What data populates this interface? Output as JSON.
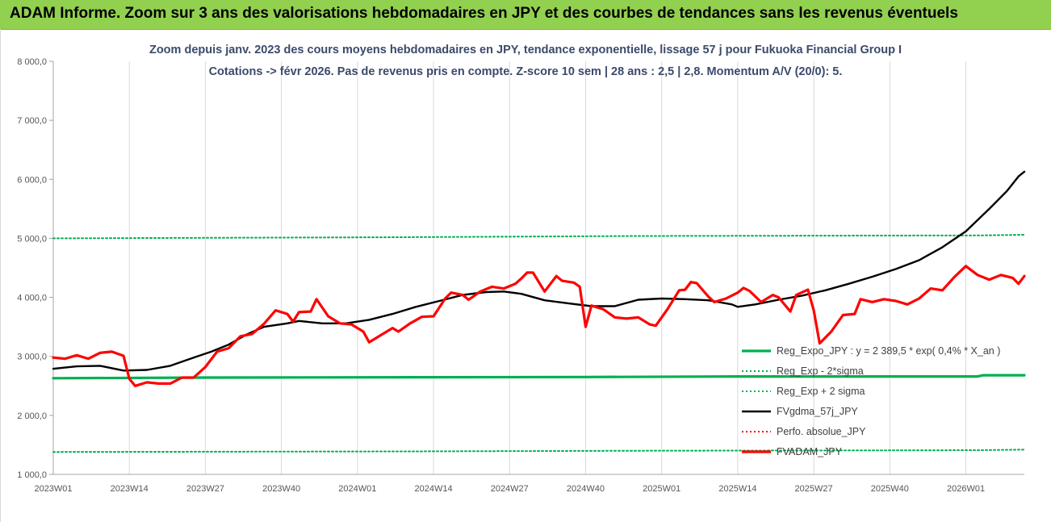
{
  "banner": {
    "title": "ADAM Informe. Zoom sur 3 ans des valorisations hebdomadaires en JPY et des courbes de tendances sans les revenus éventuels",
    "color": "#92d050"
  },
  "chart_data": {
    "type": "line",
    "title_lines": [
      "Zoom depuis janv. 2023 des cours moyens hebdomadaires en JPY, tendance exponentielle, lissage 57 j pour Fukuoka Financial Group I",
      "Cotations -> févr 2026.  Pas de revenus pris en compte. Z-score 10 sem | 28 ans : 2,5 | 2,8. Momentum A/V (20/0): 5."
    ],
    "x_tick_labels": [
      "2023W01",
      "2023W14",
      "2023W27",
      "2023W40",
      "2024W01",
      "2024W14",
      "2024W27",
      "2024W40",
      "2025W01",
      "2025W14",
      "2025W27",
      "2025W40",
      "2026W01"
    ],
    "x_tick_index": [
      0,
      13,
      26,
      39,
      52,
      65,
      78,
      91,
      104,
      117,
      130,
      143,
      156
    ],
    "y_tick_labels": [
      "1 000,0",
      "2 000,0",
      "3 000,0",
      "4 000,0",
      "5 000,0",
      "6 000,0",
      "7 000,0",
      "8 000,0"
    ],
    "ylim": [
      1000,
      8000
    ],
    "x_count": 166,
    "grid": "vertical",
    "legend_position": "bottom-right",
    "series": [
      {
        "name": "Reg_Expo_JPY : y = 2 389,5 * exp( 0,4% * X_an )",
        "color": "#00b050",
        "style": "solid-thick",
        "points": [
          [
            0,
            2630
          ],
          [
            26,
            2640
          ],
          [
            91,
            2650
          ],
          [
            117,
            2660
          ],
          [
            158,
            2660
          ],
          [
            159,
            2680
          ],
          [
            166,
            2680
          ]
        ]
      },
      {
        "name": "Reg_Exp - 2*sigma",
        "color": "#00b050",
        "style": "dotted",
        "points": [
          [
            0,
            1380
          ],
          [
            60,
            1390
          ],
          [
            100,
            1400
          ],
          [
            158,
            1410
          ],
          [
            166,
            1420
          ]
        ]
      },
      {
        "name": "Reg_Exp + 2 sigma",
        "color": "#00b050",
        "style": "dotted",
        "points": [
          [
            0,
            5000
          ],
          [
            60,
            5020
          ],
          [
            100,
            5040
          ],
          [
            158,
            5050
          ],
          [
            166,
            5060
          ]
        ]
      },
      {
        "name": "FVgdma_57j_JPY",
        "color": "#000000",
        "style": "solid",
        "points": [
          [
            0,
            2790
          ],
          [
            4,
            2830
          ],
          [
            8,
            2840
          ],
          [
            12,
            2760
          ],
          [
            16,
            2770
          ],
          [
            20,
            2840
          ],
          [
            24,
            2980
          ],
          [
            27,
            3080
          ],
          [
            30,
            3200
          ],
          [
            33,
            3370
          ],
          [
            36,
            3500
          ],
          [
            40,
            3560
          ],
          [
            42,
            3600
          ],
          [
            46,
            3560
          ],
          [
            50,
            3560
          ],
          [
            54,
            3620
          ],
          [
            58,
            3720
          ],
          [
            62,
            3840
          ],
          [
            66,
            3940
          ],
          [
            70,
            4040
          ],
          [
            74,
            4090
          ],
          [
            77,
            4100
          ],
          [
            80,
            4060
          ],
          [
            84,
            3950
          ],
          [
            88,
            3900
          ],
          [
            92,
            3850
          ],
          [
            96,
            3850
          ],
          [
            100,
            3960
          ],
          [
            104,
            3980
          ],
          [
            108,
            3970
          ],
          [
            112,
            3950
          ],
          [
            116,
            3880
          ],
          [
            117,
            3840
          ],
          [
            120,
            3880
          ],
          [
            124,
            3960
          ],
          [
            128,
            4030
          ],
          [
            132,
            4120
          ],
          [
            136,
            4230
          ],
          [
            140,
            4350
          ],
          [
            144,
            4480
          ],
          [
            148,
            4630
          ],
          [
            152,
            4850
          ],
          [
            156,
            5120
          ],
          [
            160,
            5500
          ],
          [
            163,
            5800
          ],
          [
            165,
            6050
          ],
          [
            166,
            6130
          ]
        ]
      },
      {
        "name": "Perfo. absolue_JPY",
        "color": "#ff0000",
        "style": "dotted",
        "points": []
      },
      {
        "name": "FVADAM_JPY",
        "color": "#ff0000",
        "style": "solid-thick",
        "points": [
          [
            0,
            2980
          ],
          [
            2,
            2960
          ],
          [
            4,
            3020
          ],
          [
            6,
            2960
          ],
          [
            8,
            3060
          ],
          [
            10,
            3080
          ],
          [
            12,
            3010
          ],
          [
            13,
            2620
          ],
          [
            14,
            2500
          ],
          [
            16,
            2560
          ],
          [
            18,
            2540
          ],
          [
            20,
            2540
          ],
          [
            22,
            2640
          ],
          [
            24,
            2640
          ],
          [
            26,
            2820
          ],
          [
            28,
            3080
          ],
          [
            30,
            3140
          ],
          [
            32,
            3340
          ],
          [
            34,
            3380
          ],
          [
            36,
            3550
          ],
          [
            38,
            3780
          ],
          [
            40,
            3720
          ],
          [
            41,
            3590
          ],
          [
            42,
            3750
          ],
          [
            44,
            3760
          ],
          [
            45,
            3970
          ],
          [
            47,
            3680
          ],
          [
            49,
            3560
          ],
          [
            51,
            3540
          ],
          [
            53,
            3420
          ],
          [
            54,
            3240
          ],
          [
            56,
            3360
          ],
          [
            58,
            3480
          ],
          [
            59,
            3420
          ],
          [
            61,
            3560
          ],
          [
            63,
            3670
          ],
          [
            65,
            3680
          ],
          [
            67,
            3980
          ],
          [
            68,
            4080
          ],
          [
            70,
            4040
          ],
          [
            71,
            3960
          ],
          [
            73,
            4100
          ],
          [
            75,
            4180
          ],
          [
            77,
            4150
          ],
          [
            79,
            4230
          ],
          [
            80,
            4320
          ],
          [
            81,
            4420
          ],
          [
            82,
            4420
          ],
          [
            84,
            4100
          ],
          [
            86,
            4360
          ],
          [
            87,
            4280
          ],
          [
            89,
            4250
          ],
          [
            90,
            4180
          ],
          [
            91,
            3500
          ],
          [
            92,
            3860
          ],
          [
            94,
            3800
          ],
          [
            96,
            3660
          ],
          [
            98,
            3640
          ],
          [
            100,
            3660
          ],
          [
            102,
            3540
          ],
          [
            103,
            3520
          ],
          [
            105,
            3800
          ],
          [
            107,
            4120
          ],
          [
            108,
            4130
          ],
          [
            109,
            4260
          ],
          [
            110,
            4240
          ],
          [
            112,
            4010
          ],
          [
            113,
            3920
          ],
          [
            115,
            3980
          ],
          [
            117,
            4080
          ],
          [
            118,
            4160
          ],
          [
            119,
            4110
          ],
          [
            121,
            3920
          ],
          [
            123,
            4040
          ],
          [
            124,
            4000
          ],
          [
            126,
            3760
          ],
          [
            127,
            4040
          ],
          [
            129,
            4130
          ],
          [
            130,
            3780
          ],
          [
            131,
            3220
          ],
          [
            133,
            3420
          ],
          [
            135,
            3700
          ],
          [
            137,
            3720
          ],
          [
            138,
            3970
          ],
          [
            140,
            3920
          ],
          [
            142,
            3970
          ],
          [
            144,
            3940
          ],
          [
            146,
            3880
          ],
          [
            148,
            3980
          ],
          [
            150,
            4150
          ],
          [
            152,
            4120
          ],
          [
            154,
            4340
          ],
          [
            156,
            4530
          ],
          [
            158,
            4380
          ],
          [
            160,
            4300
          ],
          [
            162,
            4380
          ],
          [
            164,
            4330
          ],
          [
            165,
            4230
          ],
          [
            166,
            4360
          ]
        ]
      }
    ]
  }
}
